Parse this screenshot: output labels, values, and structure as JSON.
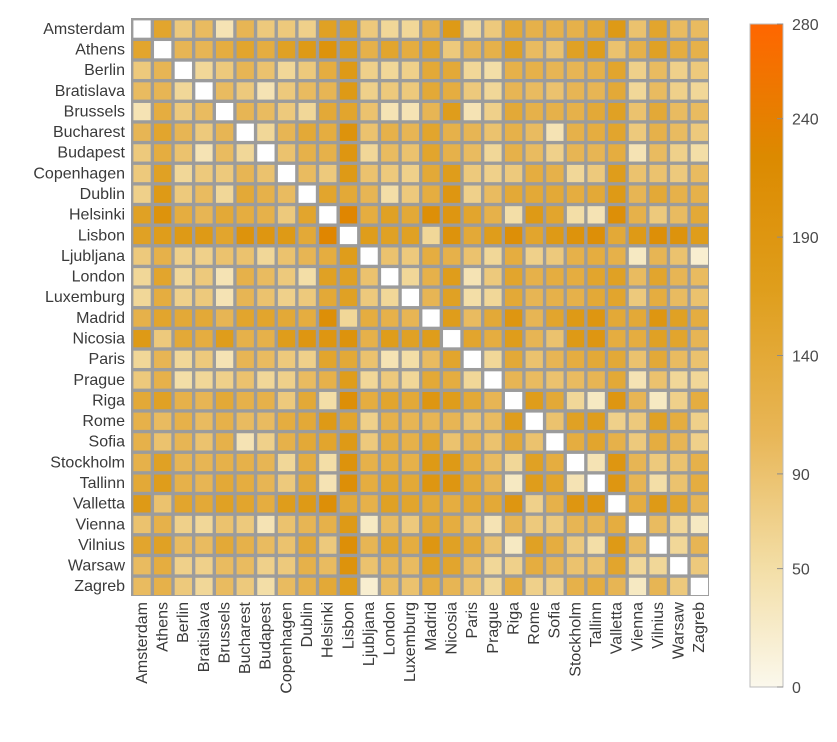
{
  "chart_data": {
    "type": "heatmap",
    "title": "",
    "xlabel": "",
    "ylabel": "",
    "categories": [
      "Amsterdam",
      "Athens",
      "Berlin",
      "Bratislava",
      "Brussels",
      "Bucharest",
      "Budapest",
      "Copenhagen",
      "Dublin",
      "Helsinki",
      "Lisbon",
      "Ljubljana",
      "London",
      "Luxemburg",
      "Madrid",
      "Nicosia",
      "Paris",
      "Prague",
      "Riga",
      "Rome",
      "Sofia",
      "Stockholm",
      "Tallinn",
      "Valletta",
      "Vienna",
      "Vilnius",
      "Warsaw",
      "Zagreb"
    ],
    "colorbar": {
      "range": [
        0,
        280
      ],
      "ticks": [
        0,
        50,
        90,
        140,
        190,
        240,
        280
      ],
      "colors": [
        "#fbf8ec",
        "#f3dea6",
        "#e8b657",
        "#df9e1c",
        "#dc8a00",
        "#ff6600"
      ]
    },
    "grid": true,
    "legend_position": "right",
    "values": [
      [
        0,
        150,
        80,
        100,
        40,
        110,
        80,
        80,
        70,
        160,
        160,
        80,
        60,
        60,
        120,
        180,
        60,
        80,
        140,
        120,
        120,
        120,
        140,
        180,
        90,
        150,
        100,
        100
      ],
      [
        150,
        0,
        110,
        110,
        130,
        150,
        130,
        160,
        180,
        200,
        170,
        120,
        150,
        130,
        150,
        80,
        110,
        120,
        160,
        100,
        90,
        160,
        170,
        90,
        120,
        160,
        130,
        120
      ],
      [
        80,
        110,
        0,
        60,
        80,
        110,
        90,
        60,
        80,
        130,
        180,
        70,
        60,
        70,
        140,
        140,
        60,
        50,
        120,
        120,
        110,
        110,
        120,
        150,
        70,
        100,
        70,
        80
      ],
      [
        100,
        110,
        60,
        0,
        100,
        80,
        40,
        80,
        100,
        110,
        180,
        70,
        80,
        80,
        140,
        130,
        80,
        60,
        110,
        100,
        90,
        110,
        110,
        140,
        60,
        100,
        70,
        60
      ],
      [
        40,
        130,
        80,
        100,
        0,
        110,
        100,
        80,
        60,
        140,
        150,
        90,
        40,
        40,
        110,
        170,
        40,
        70,
        140,
        120,
        120,
        120,
        140,
        160,
        90,
        140,
        100,
        100
      ],
      [
        110,
        150,
        110,
        80,
        110,
        0,
        60,
        110,
        140,
        130,
        200,
        90,
        120,
        110,
        150,
        120,
        110,
        90,
        120,
        100,
        40,
        120,
        130,
        150,
        80,
        120,
        100,
        80
      ],
      [
        80,
        130,
        90,
        40,
        100,
        60,
        0,
        90,
        120,
        120,
        190,
        60,
        100,
        90,
        150,
        120,
        100,
        60,
        120,
        100,
        70,
        110,
        110,
        130,
        40,
        100,
        70,
        50
      ],
      [
        80,
        160,
        60,
        80,
        80,
        110,
        90,
        0,
        100,
        80,
        180,
        90,
        80,
        70,
        140,
        170,
        80,
        70,
        80,
        130,
        120,
        60,
        80,
        170,
        90,
        90,
        80,
        100
      ],
      [
        70,
        180,
        80,
        100,
        60,
        140,
        120,
        100,
        0,
        150,
        140,
        110,
        50,
        80,
        130,
        190,
        70,
        100,
        140,
        140,
        140,
        130,
        140,
        180,
        110,
        140,
        120,
        120
      ],
      [
        160,
        200,
        130,
        110,
        140,
        130,
        120,
        80,
        150,
        0,
        230,
        130,
        160,
        140,
        210,
        190,
        150,
        120,
        50,
        180,
        150,
        50,
        40,
        210,
        120,
        80,
        100,
        140
      ],
      [
        160,
        170,
        180,
        180,
        150,
        200,
        190,
        180,
        140,
        230,
        0,
        170,
        160,
        160,
        60,
        200,
        140,
        170,
        210,
        150,
        180,
        200,
        210,
        140,
        180,
        210,
        200,
        170
      ],
      [
        80,
        120,
        70,
        70,
        90,
        90,
        60,
        90,
        110,
        130,
        170,
        0,
        90,
        80,
        130,
        120,
        90,
        60,
        130,
        70,
        80,
        120,
        130,
        120,
        30,
        110,
        90,
        20
      ],
      [
        60,
        150,
        60,
        80,
        40,
        120,
        100,
        80,
        50,
        160,
        160,
        90,
        0,
        60,
        120,
        170,
        40,
        80,
        150,
        120,
        130,
        130,
        150,
        160,
        100,
        150,
        110,
        100
      ],
      [
        60,
        130,
        70,
        80,
        40,
        110,
        90,
        70,
        80,
        140,
        160,
        80,
        60,
        0,
        110,
        160,
        50,
        60,
        140,
        110,
        120,
        120,
        140,
        150,
        80,
        130,
        100,
        90
      ],
      [
        120,
        150,
        140,
        140,
        110,
        150,
        150,
        140,
        130,
        210,
        60,
        130,
        120,
        110,
        0,
        170,
        100,
        140,
        190,
        110,
        150,
        180,
        190,
        140,
        140,
        190,
        160,
        130
      ],
      [
        180,
        80,
        140,
        130,
        170,
        120,
        120,
        170,
        190,
        190,
        200,
        120,
        170,
        160,
        170,
        0,
        150,
        130,
        170,
        110,
        90,
        180,
        190,
        130,
        130,
        160,
        150,
        110
      ],
      [
        60,
        110,
        60,
        80,
        40,
        110,
        100,
        80,
        70,
        150,
        140,
        90,
        40,
        50,
        100,
        150,
        0,
        60,
        140,
        90,
        110,
        130,
        140,
        140,
        90,
        140,
        100,
        90
      ],
      [
        80,
        120,
        50,
        60,
        70,
        90,
        60,
        70,
        100,
        120,
        170,
        60,
        80,
        60,
        140,
        130,
        60,
        0,
        110,
        100,
        90,
        100,
        110,
        140,
        40,
        90,
        60,
        60
      ],
      [
        140,
        160,
        120,
        110,
        140,
        120,
        120,
        80,
        140,
        50,
        210,
        130,
        150,
        140,
        190,
        170,
        140,
        110,
        0,
        170,
        140,
        60,
        30,
        190,
        110,
        30,
        70,
        130
      ],
      [
        120,
        100,
        120,
        100,
        120,
        100,
        100,
        130,
        140,
        180,
        150,
        70,
        120,
        110,
        110,
        110,
        90,
        100,
        170,
        0,
        90,
        160,
        170,
        70,
        80,
        160,
        130,
        70
      ],
      [
        120,
        90,
        110,
        90,
        120,
        40,
        70,
        120,
        140,
        150,
        180,
        80,
        130,
        120,
        150,
        90,
        110,
        90,
        140,
        90,
        0,
        130,
        150,
        120,
        80,
        130,
        110,
        70
      ],
      [
        120,
        160,
        110,
        110,
        120,
        120,
        110,
        60,
        130,
        50,
        200,
        120,
        130,
        120,
        180,
        180,
        130,
        100,
        60,
        160,
        130,
        0,
        40,
        190,
        110,
        80,
        90,
        120
      ],
      [
        140,
        170,
        120,
        110,
        140,
        130,
        110,
        80,
        140,
        40,
        210,
        130,
        150,
        140,
        190,
        190,
        140,
        110,
        30,
        170,
        150,
        40,
        0,
        190,
        110,
        50,
        90,
        130
      ],
      [
        180,
        90,
        150,
        140,
        160,
        150,
        130,
        170,
        180,
        210,
        140,
        120,
        160,
        150,
        140,
        130,
        140,
        140,
        190,
        70,
        120,
        190,
        190,
        0,
        130,
        180,
        150,
        110
      ],
      [
        90,
        120,
        70,
        60,
        90,
        80,
        40,
        90,
        110,
        120,
        180,
        30,
        100,
        80,
        140,
        130,
        90,
        40,
        110,
        80,
        80,
        110,
        110,
        130,
        0,
        100,
        60,
        30
      ],
      [
        150,
        160,
        100,
        100,
        140,
        120,
        100,
        90,
        140,
        80,
        210,
        110,
        150,
        130,
        190,
        160,
        140,
        90,
        30,
        160,
        130,
        80,
        50,
        180,
        100,
        0,
        60,
        110
      ],
      [
        100,
        130,
        70,
        70,
        100,
        100,
        70,
        80,
        120,
        100,
        200,
        90,
        110,
        100,
        160,
        150,
        100,
        60,
        70,
        130,
        110,
        90,
        90,
        150,
        60,
        60,
        0,
        80
      ],
      [
        100,
        120,
        80,
        60,
        100,
        80,
        50,
        100,
        120,
        140,
        170,
        20,
        100,
        90,
        130,
        110,
        90,
        60,
        130,
        70,
        70,
        120,
        130,
        110,
        30,
        110,
        80,
        0
      ]
    ]
  }
}
